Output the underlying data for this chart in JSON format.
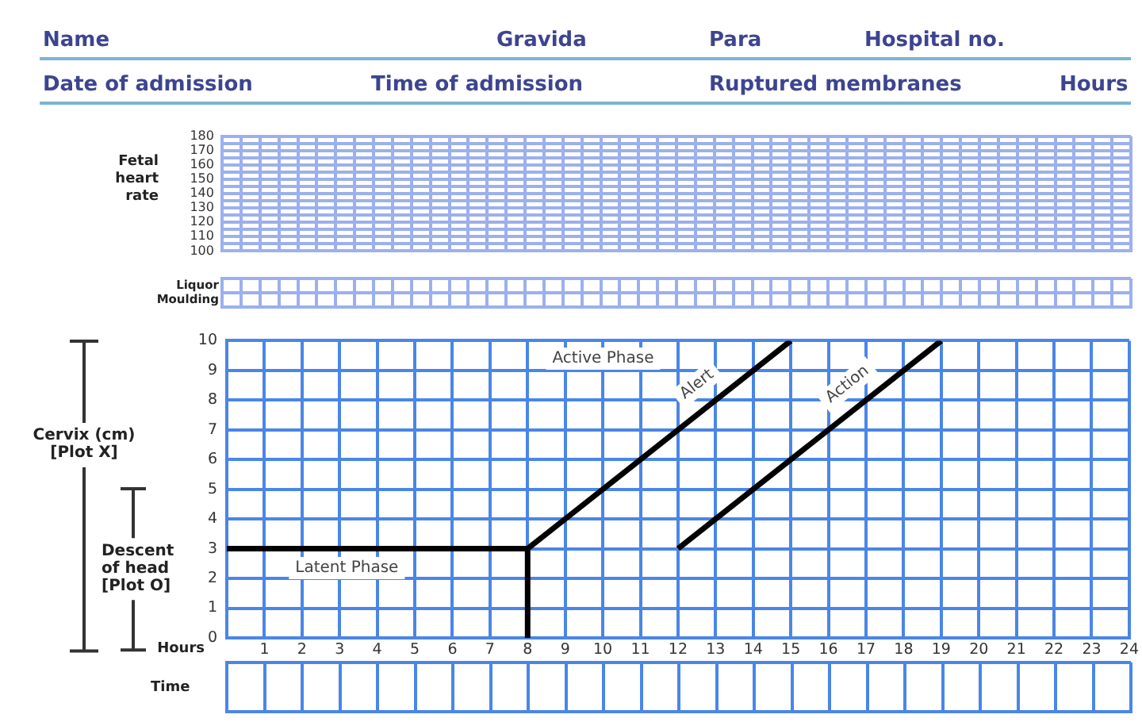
{
  "chart_data": [
    {
      "type": "other",
      "annotations": [
        "Name",
        "Gravida",
        "Para",
        "Hospital no.",
        "Date of admission",
        "Time of admission",
        "Ruptured membranes",
        "Hours"
      ]
    },
    {
      "type": "line",
      "ylabel": "Fetal heart rate",
      "categories": [
        null,
        null,
        null,
        null,
        null,
        null,
        null,
        null,
        null,
        null,
        null,
        null,
        null,
        null,
        null,
        null,
        null,
        null,
        null,
        null,
        null,
        null,
        null,
        null,
        null,
        null,
        null,
        null,
        null,
        null,
        null,
        null,
        null,
        null,
        null,
        null,
        null,
        null,
        null,
        null,
        null,
        null,
        null,
        null,
        null,
        null,
        null,
        null
      ],
      "ylim": [
        100,
        180
      ],
      "yticks": [
        100,
        {
          "value": 105,
          "label": null
        },
        110,
        {
          "value": 115,
          "label": null
        },
        120,
        {
          "value": 125,
          "label": null
        },
        130,
        {
          "value": 135,
          "label": null
        },
        140,
        {
          "value": 145,
          "label": null
        },
        150,
        {
          "value": 155,
          "label": null
        },
        160,
        {
          "value": 165,
          "label": null
        },
        170,
        {
          "value": 175,
          "label": null
        },
        180
      ],
      "grid": true,
      "tick_labels": "y"
    },
    {
      "type": "heatmap",
      "categories": [
        null,
        null,
        null,
        null,
        null,
        null,
        null,
        null,
        null,
        null,
        null,
        null,
        null,
        null,
        null,
        null,
        null,
        null,
        null,
        null,
        null,
        null,
        null,
        null,
        null,
        null,
        null,
        null,
        null,
        null,
        null,
        null,
        null,
        null,
        null,
        null,
        null,
        null,
        null,
        null,
        null,
        null,
        null,
        null,
        null,
        null,
        null,
        null
      ],
      "y_categories": [
        "Liquor",
        "Moulding"
      ],
      "cells": [
        [
          null,
          null,
          null,
          null,
          null,
          null,
          null,
          null,
          null,
          null,
          null,
          null,
          null,
          null,
          null,
          null,
          null,
          null,
          null,
          null,
          null,
          null,
          null,
          null,
          null,
          null,
          null,
          null,
          null,
          null,
          null,
          null,
          null,
          null,
          null,
          null,
          null,
          null,
          null,
          null,
          null,
          null,
          null,
          null,
          null,
          null,
          null,
          null
        ],
        [
          null,
          null,
          null,
          null,
          null,
          null,
          null,
          null,
          null,
          null,
          null,
          null,
          null,
          null,
          null,
          null,
          null,
          null,
          null,
          null,
          null,
          null,
          null,
          null,
          null,
          null,
          null,
          null,
          null,
          null,
          null,
          null,
          null,
          null,
          null,
          null,
          null,
          null,
          null,
          null,
          null,
          null,
          null,
          null,
          null,
          null,
          null,
          null
        ]
      ],
      "grid": true
    },
    {
      "type": "line",
      "xlabel": "Hours",
      "ylabel": "Cervix (cm) [Plot X]",
      "xlim": [
        0,
        24
      ],
      "ylim": [
        0,
        10
      ],
      "xticks": [
        {
          "value": 0,
          "label": null
        },
        1,
        2,
        3,
        4,
        5,
        6,
        7,
        8,
        9,
        10,
        11,
        12,
        13,
        14,
        15,
        16,
        17,
        18,
        19,
        20,
        21,
        22,
        23,
        24
      ],
      "yticks": [
        0,
        1,
        2,
        3,
        4,
        5,
        6,
        7,
        8,
        9,
        10
      ],
      "grid": true,
      "marker": "none",
      "series": [
        {
          "color": "#000000",
          "x": [
            0,
            8,
            8
          ],
          "values": [
            3,
            3,
            0
          ]
        },
        {
          "name": "Alert",
          "color": "#000000",
          "x": [
            8,
            15
          ],
          "values": [
            3,
            10
          ]
        },
        {
          "name": "Action",
          "color": "#000000",
          "x": [
            12,
            19
          ],
          "values": [
            3,
            10
          ]
        }
      ],
      "annotations": [
        "Active Phase",
        "Latent Phase",
        "Descent of head [Plot O]"
      ]
    },
    {
      "type": "heatmap",
      "categories": [
        null,
        null,
        null,
        null,
        null,
        null,
        null,
        null,
        null,
        null,
        null,
        null,
        null,
        null,
        null,
        null,
        null,
        null,
        null,
        null,
        null,
        null,
        null,
        null
      ],
      "y_categories": [
        "Time"
      ],
      "cells": [
        [
          null,
          null,
          null,
          null,
          null,
          null,
          null,
          null,
          null,
          null,
          null,
          null,
          null,
          null,
          null,
          null,
          null,
          null,
          null,
          null,
          null,
          null,
          null,
          null
        ]
      ],
      "grid": true
    }
  ]
}
